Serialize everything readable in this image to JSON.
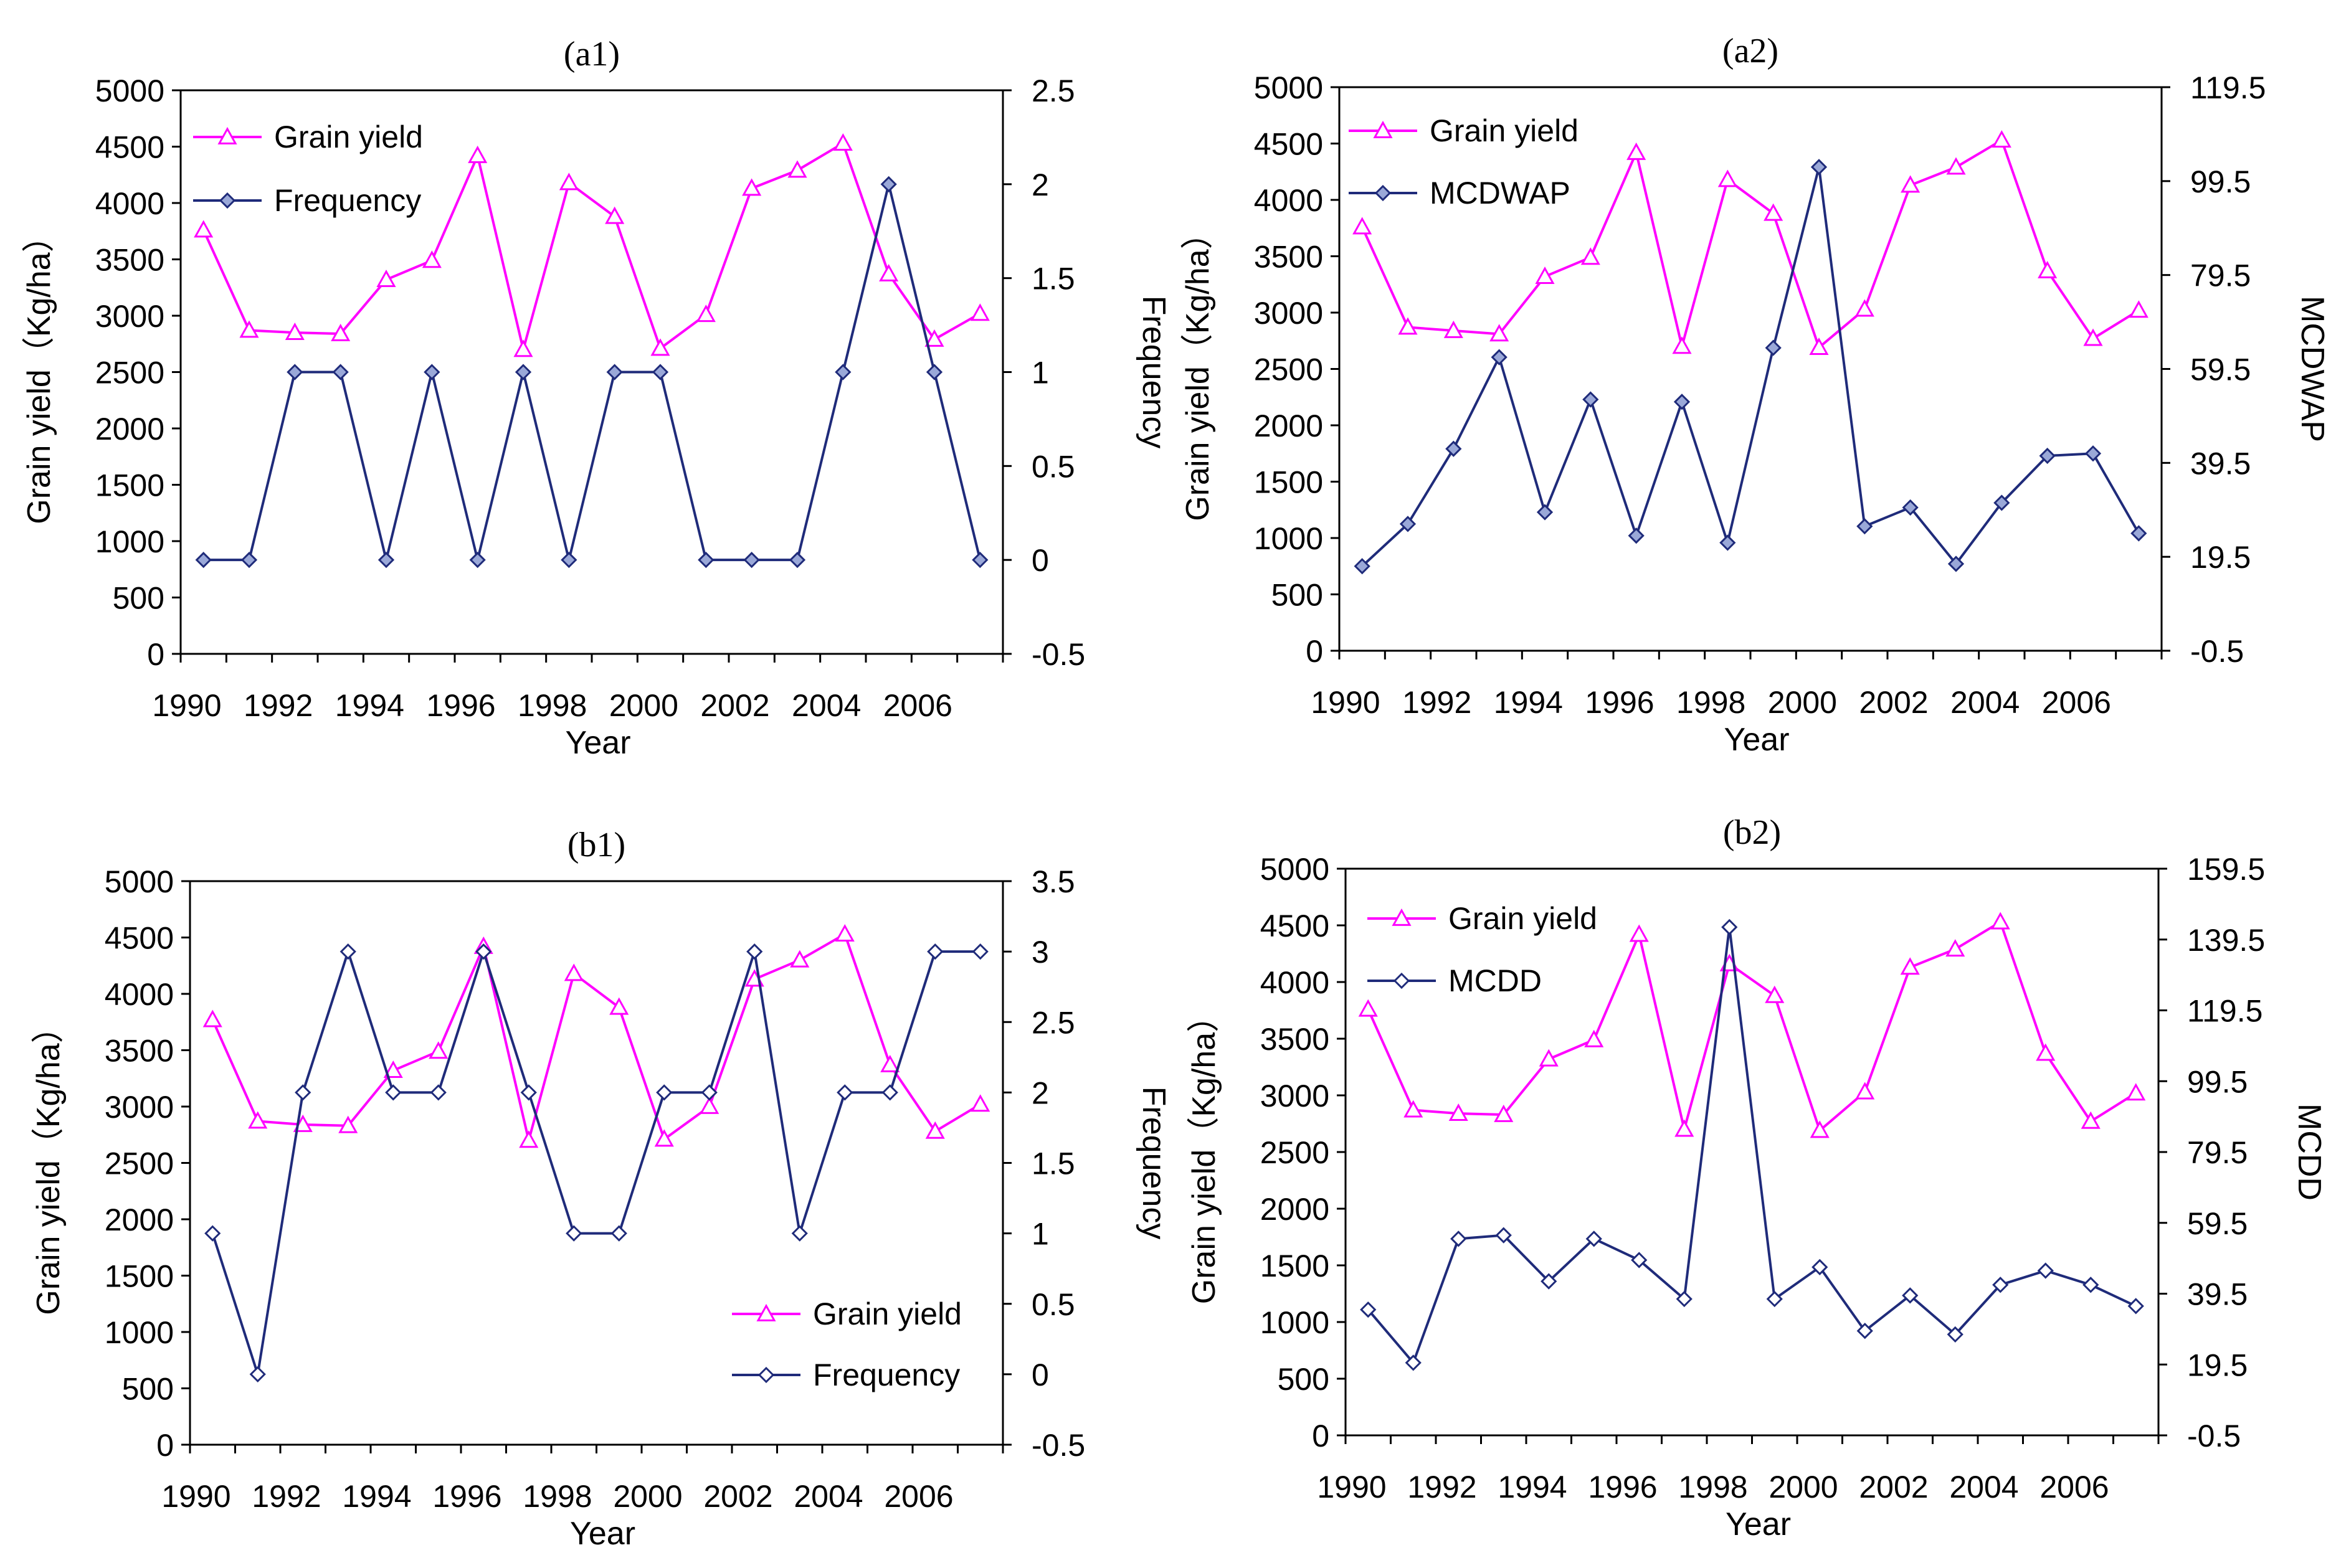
{
  "colors": {
    "yield": "#ff00ff",
    "series2": "#1f2b7a",
    "axis": "#000000"
  },
  "chart_data": [
    {
      "id": "a1",
      "type": "line",
      "title": "(a1)",
      "xlabel": "Year",
      "ylabel": "Grain yield（Kg/ha）",
      "y2label": "Frequency",
      "x": [
        1990,
        1991,
        1992,
        1993,
        1994,
        1995,
        1996,
        1997,
        1998,
        1999,
        2000,
        2001,
        2002,
        2003,
        2004,
        2005,
        2006,
        2007
      ],
      "xticks": [
        "1990",
        "1992",
        "1994",
        "1996",
        "1998",
        "2000",
        "2002",
        "2004",
        "2006"
      ],
      "yticks": [
        "0",
        "500",
        "1000",
        "1500",
        "2000",
        "2500",
        "3000",
        "3500",
        "4000",
        "4500",
        "5000"
      ],
      "y2ticks": [
        "-0.5",
        "0",
        "0.5",
        "1",
        "1.5",
        "2",
        "2.5"
      ],
      "ylim": [
        0,
        5000
      ],
      "y2lim": [
        -0.5,
        2.5
      ],
      "legend": "top-left",
      "series": [
        {
          "name": "Grain yield",
          "axis": "left",
          "marker": "triangle",
          "values": [
            3760,
            2870,
            2850,
            2840,
            3320,
            3490,
            4420,
            2700,
            4180,
            3880,
            2710,
            3010,
            4130,
            4290,
            4530,
            3370,
            2790,
            3020
          ]
        },
        {
          "name": "Frequency",
          "axis": "right",
          "marker": "diamond-filled",
          "values": [
            0,
            0,
            1,
            1,
            0,
            1,
            0,
            1,
            0,
            1,
            1,
            0,
            0,
            0,
            1,
            2,
            1,
            0
          ]
        }
      ]
    },
    {
      "id": "a2",
      "type": "line",
      "title": "(a2)",
      "xlabel": "Year",
      "ylabel": "Grain yield（Kg/ha）",
      "y2label": "MCDWAP",
      "x": [
        1990,
        1991,
        1992,
        1993,
        1994,
        1995,
        1996,
        1997,
        1998,
        1999,
        2000,
        2001,
        2002,
        2003,
        2004,
        2005,
        2006,
        2007
      ],
      "xticks": [
        "1990",
        "1992",
        "1994",
        "1996",
        "1998",
        "2000",
        "2002",
        "2004",
        "2006"
      ],
      "yticks": [
        "0",
        "500",
        "1000",
        "1500",
        "2000",
        "2500",
        "3000",
        "3500",
        "4000",
        "4500",
        "5000"
      ],
      "y2ticks": [
        "-0.5",
        "19.5",
        "39.5",
        "59.5",
        "79.5",
        "99.5",
        "119.5"
      ],
      "ylim": [
        0,
        5000
      ],
      "y2lim": [
        -0.5,
        119.5
      ],
      "legend": "top-left",
      "series": [
        {
          "name": "Grain yield",
          "axis": "left",
          "marker": "triangle",
          "values": [
            3760,
            2870,
            2840,
            2810,
            3320,
            3490,
            4420,
            2700,
            4180,
            3880,
            2690,
            3030,
            4130,
            4290,
            4530,
            3370,
            2770,
            3020
          ]
        },
        {
          "name": "MCDWAP",
          "axis": "right",
          "marker": "diamond-filled",
          "values": [
            17.5,
            26.5,
            42.5,
            62,
            29,
            53,
            24,
            52.5,
            22.5,
            64,
            102.5,
            26,
            30,
            18,
            31,
            41,
            41.5,
            24.5
          ]
        }
      ]
    },
    {
      "id": "b1",
      "type": "line",
      "title": "(b1)",
      "xlabel": "Year",
      "ylabel": "Grain yield（Kg/ha）",
      "y2label": "Frequency",
      "x": [
        1990,
        1991,
        1992,
        1993,
        1994,
        1995,
        1996,
        1997,
        1998,
        1999,
        2000,
        2001,
        2002,
        2003,
        2004,
        2005,
        2006,
        2007
      ],
      "xticks": [
        "1990",
        "1992",
        "1994",
        "1996",
        "1998",
        "2000",
        "2002",
        "2004",
        "2006"
      ],
      "yticks": [
        "0",
        "500",
        "1000",
        "1500",
        "2000",
        "2500",
        "3000",
        "3500",
        "4000",
        "4500",
        "5000"
      ],
      "y2ticks": [
        "-0.5",
        "0",
        "0.5",
        "1",
        "1.5",
        "2",
        "2.5",
        "3",
        "3.5"
      ],
      "ylim": [
        0,
        5000
      ],
      "y2lim": [
        -0.5,
        3.5
      ],
      "legend": "bottom-right",
      "series": [
        {
          "name": "Grain yield",
          "axis": "left",
          "marker": "triangle",
          "values": [
            3770,
            2870,
            2840,
            2830,
            3320,
            3490,
            4420,
            2700,
            4180,
            3880,
            2710,
            3000,
            4130,
            4300,
            4530,
            3370,
            2780,
            3020
          ]
        },
        {
          "name": "Frequency",
          "axis": "right",
          "marker": "diamond-open",
          "values": [
            1,
            0,
            2,
            3,
            2,
            2,
            3,
            2,
            1,
            1,
            2,
            2,
            3,
            1,
            2,
            2,
            3,
            3
          ]
        }
      ]
    },
    {
      "id": "b2",
      "type": "line",
      "title": "(b2)",
      "xlabel": "Year",
      "ylabel": "Grain yield（Kg/ha）",
      "y2label": "MCDD",
      "x": [
        1990,
        1991,
        1992,
        1993,
        1994,
        1995,
        1996,
        1997,
        1998,
        1999,
        2000,
        2001,
        2002,
        2003,
        2004,
        2005,
        2006,
        2007
      ],
      "xticks": [
        "1990",
        "1992",
        "1994",
        "1996",
        "1998",
        "2000",
        "2002",
        "2004",
        "2006"
      ],
      "yticks": [
        "0",
        "500",
        "1000",
        "1500",
        "2000",
        "2500",
        "3000",
        "3500",
        "4000",
        "4500",
        "5000"
      ],
      "y2ticks": [
        "-0.5",
        "19.5",
        "39.5",
        "59.5",
        "79.5",
        "99.5",
        "119.5",
        "139.5",
        "159.5"
      ],
      "ylim": [
        0,
        5000
      ],
      "y2lim": [
        -0.5,
        159.5
      ],
      "legend": "top-left",
      "series": [
        {
          "name": "Grain yield",
          "axis": "left",
          "marker": "triangle",
          "values": [
            3760,
            2870,
            2840,
            2830,
            3320,
            3490,
            4420,
            2700,
            4160,
            3880,
            2690,
            3030,
            4130,
            4290,
            4530,
            3370,
            2770,
            3020
          ]
        },
        {
          "name": "MCDD",
          "axis": "right",
          "marker": "diamond-open",
          "values": [
            35,
            20,
            55,
            56,
            43,
            55,
            49,
            38,
            143,
            38,
            47,
            29,
            39,
            28,
            42,
            46,
            42,
            36
          ]
        }
      ]
    }
  ]
}
